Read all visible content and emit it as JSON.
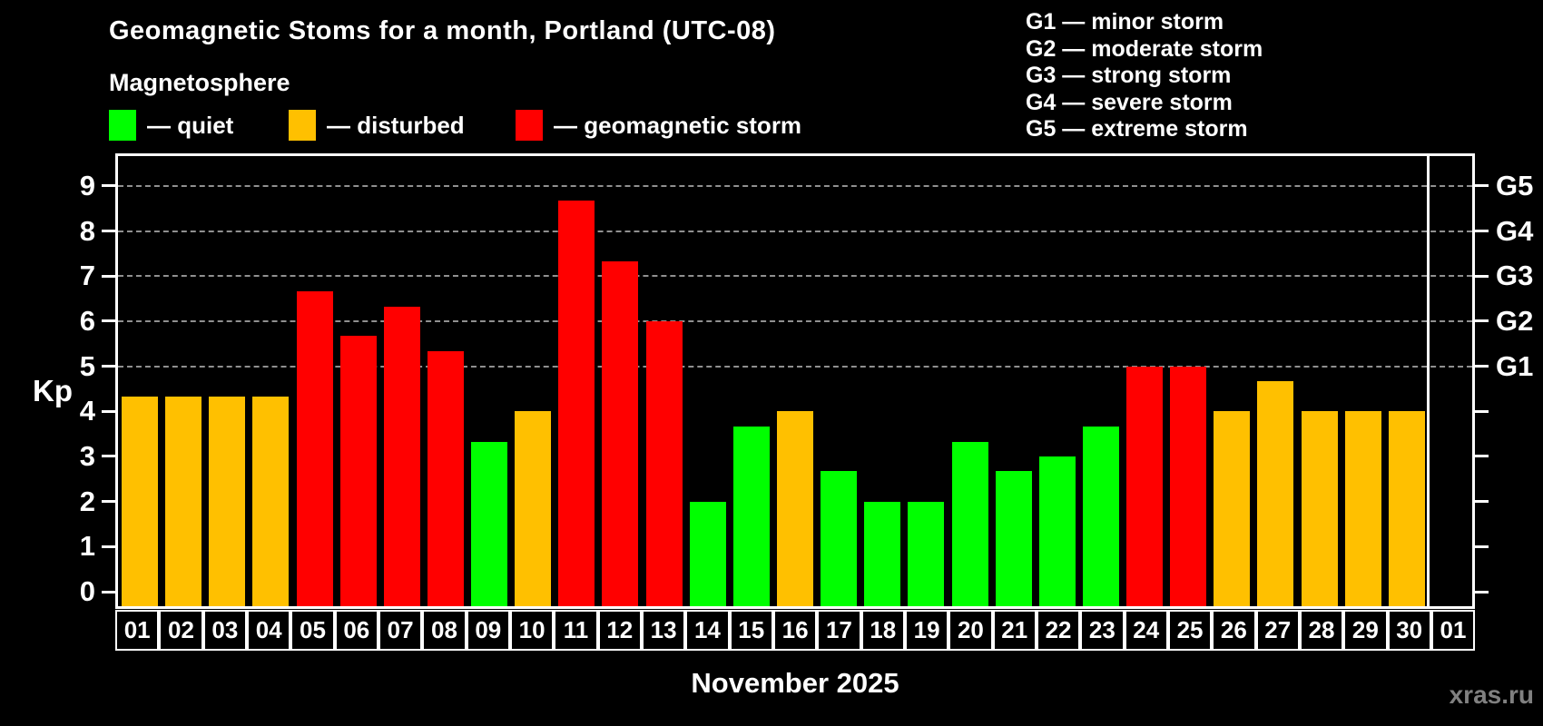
{
  "title": "Geomagnetic Stoms for a month, Portland (UTC-08)",
  "subtitle": "Magnetosphere",
  "condition_legend": [
    {
      "key": "quiet",
      "label": "— quiet"
    },
    {
      "key": "disturbed",
      "label": "— disturbed"
    },
    {
      "key": "storm",
      "label": "— geomagnetic storm"
    }
  ],
  "storm_scale_legend": [
    "G1 — minor storm",
    "G2 — moderate storm",
    "G3 — strong storm",
    "G4 — severe storm",
    "G5 — extreme storm"
  ],
  "colors": {
    "quiet": "#00ff00",
    "disturbed": "#ffc000",
    "storm": "#ff0000",
    "grid": "#aaaaaa",
    "frame": "#ffffff",
    "watermark": "#808080"
  },
  "axes": {
    "ylabel": "Kp",
    "xlabel": "November 2025",
    "yticks": [
      0,
      1,
      2,
      3,
      4,
      5,
      6,
      7,
      8,
      9
    ],
    "right_tick_labels": {
      "5": "G1",
      "6": "G2",
      "7": "G3",
      "8": "G4",
      "9": "G5"
    },
    "grid_levels": [
      5,
      6,
      7,
      8,
      9
    ],
    "ymin": -0.32,
    "ymax": 9.66
  },
  "watermark": "xras.ru",
  "chart_data": {
    "type": "bar",
    "title": "Geomagnetic Stoms for a month, Portland (UTC-08)",
    "xlabel": "November 2025",
    "ylabel": "Kp",
    "ylim": [
      0,
      9
    ],
    "grid": "horizontal dashed lines at Kp 5,6,7,8,9 (G1..G5 levels)",
    "legend_position": "top-left",
    "categories": [
      "01",
      "02",
      "03",
      "04",
      "05",
      "06",
      "07",
      "08",
      "09",
      "10",
      "11",
      "12",
      "13",
      "14",
      "15",
      "16",
      "17",
      "18",
      "19",
      "20",
      "21",
      "22",
      "23",
      "24",
      "25",
      "26",
      "27",
      "28",
      "29",
      "30",
      "01"
    ],
    "values": [
      4.33,
      4.33,
      4.33,
      4.33,
      6.67,
      5.67,
      6.33,
      5.33,
      3.33,
      4.0,
      8.67,
      7.33,
      6.0,
      2.0,
      3.67,
      4.0,
      2.67,
      2.0,
      2.0,
      3.33,
      2.67,
      3.0,
      3.67,
      5.0,
      5.0,
      4.0,
      4.67,
      4.0,
      4.0,
      4.0,
      null
    ],
    "conditions": [
      "disturbed",
      "disturbed",
      "disturbed",
      "disturbed",
      "storm",
      "storm",
      "storm",
      "storm",
      "quiet",
      "disturbed",
      "storm",
      "storm",
      "storm",
      "quiet",
      "quiet",
      "disturbed",
      "quiet",
      "quiet",
      "quiet",
      "quiet",
      "quiet",
      "quiet",
      "quiet",
      "storm",
      "storm",
      "disturbed",
      "disturbed",
      "disturbed",
      "disturbed",
      "disturbed",
      null
    ],
    "note": "last slot 01 is next month (December), empty"
  }
}
